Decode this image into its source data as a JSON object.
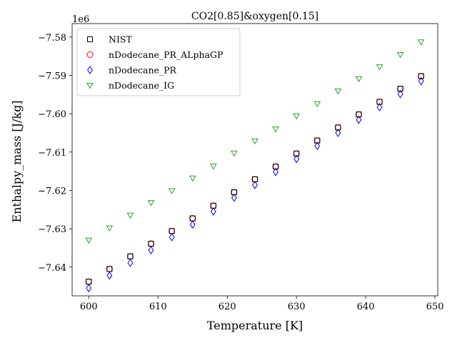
{
  "chart_data": {
    "type": "scatter",
    "title": "CO2[0.85]&oxygen[0.15]",
    "xlabel": "Temperature [K]",
    "ylabel": "Enthalpy_mass [J/kg]",
    "offset_label": "1e6",
    "xlim": [
      597.6,
      650.4
    ],
    "ylim": [
      -7.6475,
      -7.5765
    ],
    "x_ticks": [
      600,
      610,
      620,
      630,
      640,
      650
    ],
    "y_ticks": [
      -7.64,
      -7.63,
      -7.62,
      -7.61,
      -7.6,
      -7.59,
      -7.58
    ],
    "x_tick_labels": [
      "600",
      "610",
      "620",
      "630",
      "640",
      "650"
    ],
    "y_tick_labels": [
      "−7.64",
      "−7.63",
      "−7.62",
      "−7.61",
      "−7.60",
      "−7.59",
      "−7.58"
    ],
    "legend_position": "top-left",
    "grid": false,
    "x": [
      600,
      603,
      606,
      609,
      612,
      615,
      618,
      621,
      624,
      627,
      630,
      633,
      636,
      639,
      642,
      645,
      648
    ],
    "series": [
      {
        "name": "NIST",
        "marker": "square",
        "color": "#000000",
        "values": [
          -7.6438,
          -7.6405,
          -7.6372,
          -7.6339,
          -7.6306,
          -7.6273,
          -7.624,
          -7.6205,
          -7.6171,
          -7.6138,
          -7.6104,
          -7.607,
          -7.6036,
          -7.6002,
          -7.5969,
          -7.5935,
          -7.5902
        ]
      },
      {
        "name": "nDodecane_PR_ALphaGP",
        "marker": "circle",
        "color": "#ff0000",
        "values": [
          -7.6438,
          -7.6405,
          -7.6372,
          -7.6339,
          -7.6306,
          -7.6273,
          -7.624,
          -7.6205,
          -7.6171,
          -7.6138,
          -7.6104,
          -7.607,
          -7.6036,
          -7.6002,
          -7.5969,
          -7.5935,
          -7.5902
        ]
      },
      {
        "name": "nDodecane_PR",
        "marker": "diamond",
        "color": "#0000ff",
        "values": [
          -7.6455,
          -7.6422,
          -7.6389,
          -7.6356,
          -7.6322,
          -7.6289,
          -7.6255,
          -7.6219,
          -7.6186,
          -7.6152,
          -7.6118,
          -7.6084,
          -7.605,
          -7.6016,
          -7.5983,
          -7.5949,
          -7.5915
        ]
      },
      {
        "name": "nDodecane_IG",
        "marker": "triangle-down",
        "color": "#2ca02c",
        "values": [
          -7.633,
          -7.6298,
          -7.6265,
          -7.6232,
          -7.6201,
          -7.6168,
          -7.6137,
          -7.6103,
          -7.6071,
          -7.604,
          -7.6006,
          -7.5974,
          -7.5941,
          -7.5909,
          -7.5878,
          -7.5846,
          -7.5813
        ]
      }
    ]
  }
}
